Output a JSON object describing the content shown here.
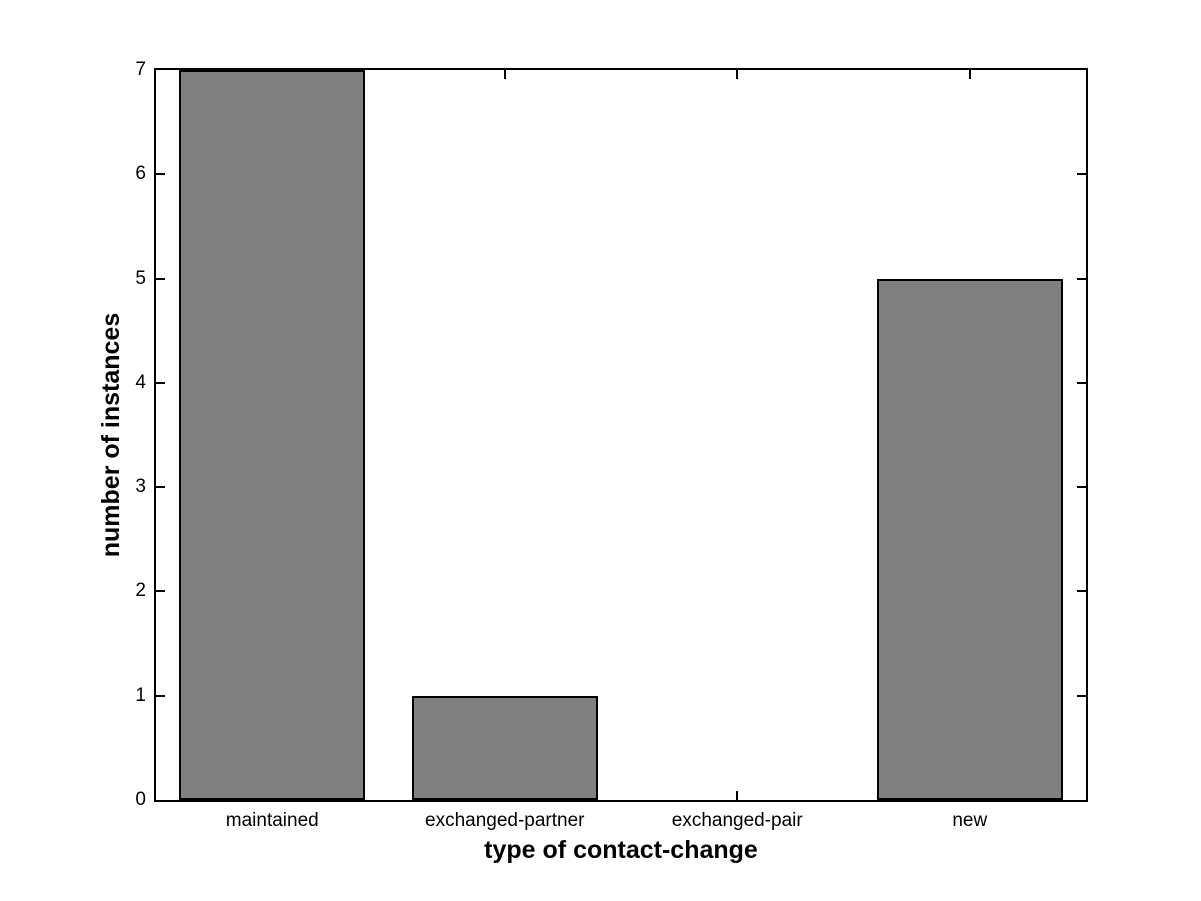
{
  "figure": {
    "background": "#ffffff"
  },
  "chart_data": {
    "type": "bar",
    "title": "",
    "categories": [
      "maintained",
      "exchanged-partner",
      "exchanged-pair",
      "new"
    ],
    "values": [
      7,
      1,
      0,
      5
    ],
    "xlabel": "type of contact-change",
    "ylabel": "number of instances",
    "ylim": [
      0,
      7
    ],
    "yticks": [
      "0",
      "1",
      "2",
      "3",
      "4",
      "5",
      "6",
      "7"
    ],
    "xlim": [
      0.5,
      4.5
    ],
    "bar_width_fraction": 0.8,
    "grid": false,
    "legend_position": "none",
    "bar_color": "#808080",
    "bar_edge_color": "#000000",
    "axis_color": "#000000",
    "background_color": "#ffffff",
    "tick_direction": "in",
    "box": true
  }
}
